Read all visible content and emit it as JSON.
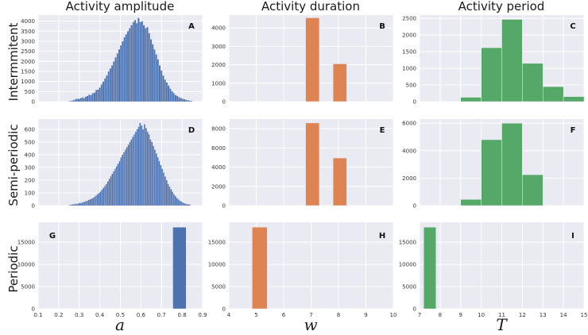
{
  "figure": {
    "column_titles": [
      "Activity amplitude",
      "Activity duration",
      "Activity period"
    ],
    "row_labels": [
      "Intermmitent",
      "Semi-periodic",
      "Periodic"
    ],
    "x_labels": [
      "a",
      "w",
      "T"
    ]
  },
  "chart_data": [
    {
      "id": "A",
      "type": "bar",
      "row": 0,
      "col": 0,
      "color": "#4c72b0",
      "xlim": [
        0.1,
        0.9
      ],
      "ylim": [
        0,
        4300
      ],
      "yticks": [
        0,
        500,
        1000,
        1500,
        2000,
        2500,
        3000,
        3500,
        4000
      ],
      "xticks": [
        0.1,
        0.2,
        0.3,
        0.4,
        0.5,
        0.6,
        0.7,
        0.8,
        0.9
      ],
      "bins": {
        "start": 0.25,
        "width": 0.00857,
        "values": [
          30,
          40,
          70,
          110,
          150,
          130,
          170,
          210,
          180,
          250,
          280,
          350,
          330,
          420,
          450,
          580,
          600,
          700,
          850,
          1000,
          1150,
          1300,
          1500,
          1650,
          1800,
          2000,
          2200,
          2400,
          2600,
          2800,
          3000,
          3200,
          3350,
          3500,
          3650,
          3800,
          3950,
          4050,
          3900,
          4150,
          3950,
          4000,
          3800,
          3650,
          3700,
          3400,
          3100,
          2850,
          2600,
          2350,
          2100,
          1800,
          1550,
          1300,
          1100,
          950,
          800,
          650,
          520,
          420,
          330,
          280,
          220,
          180,
          140,
          120,
          90,
          70,
          50,
          40
        ]
      }
    },
    {
      "id": "B",
      "type": "bar",
      "row": 0,
      "col": 1,
      "color": "#dd8452",
      "xlim": [
        4,
        10
      ],
      "ylim": [
        0,
        4700
      ],
      "yticks": [
        0,
        1000,
        2000,
        3000,
        4000
      ],
      "xticks": [
        4,
        5,
        6,
        7,
        8,
        9,
        10
      ],
      "bars": [
        {
          "x0": 6.8,
          "x1": 7.3,
          "value": 4550
        },
        {
          "x0": 7.8,
          "x1": 8.3,
          "value": 2050
        }
      ]
    },
    {
      "id": "C",
      "type": "bar",
      "row": 0,
      "col": 2,
      "color": "#55a868",
      "xlim": [
        7,
        15
      ],
      "ylim": [
        0,
        2600
      ],
      "yticks": [
        0,
        500,
        1000,
        1500,
        2000,
        2500
      ],
      "xticks": [
        7,
        8,
        9,
        10,
        11,
        12,
        13,
        14,
        15
      ],
      "bars": [
        {
          "x0": 9,
          "x1": 10,
          "value": 130
        },
        {
          "x0": 10,
          "x1": 11,
          "value": 1620
        },
        {
          "x0": 11,
          "x1": 12,
          "value": 2470
        },
        {
          "x0": 12,
          "x1": 13,
          "value": 1150
        },
        {
          "x0": 13,
          "x1": 14,
          "value": 450
        },
        {
          "x0": 14,
          "x1": 15,
          "value": 150
        }
      ]
    },
    {
      "id": "D",
      "type": "bar",
      "row": 1,
      "col": 0,
      "color": "#4c72b0",
      "xlim": [
        0.1,
        0.9
      ],
      "ylim": [
        0,
        680
      ],
      "yticks": [
        0,
        100,
        200,
        300,
        400,
        500,
        600
      ],
      "xticks": [
        0.1,
        0.2,
        0.3,
        0.4,
        0.5,
        0.6,
        0.7,
        0.8,
        0.9
      ],
      "bins": {
        "start": 0.25,
        "width": 0.00714,
        "values": [
          5,
          8,
          10,
          12,
          15,
          14,
          18,
          22,
          20,
          28,
          30,
          35,
          38,
          45,
          50,
          55,
          60,
          70,
          80,
          90,
          100,
          110,
          125,
          140,
          155,
          170,
          190,
          210,
          230,
          250,
          270,
          290,
          310,
          330,
          350,
          380,
          400,
          420,
          440,
          460,
          480,
          500,
          520,
          540,
          560,
          580,
          600,
          620,
          650,
          630,
          600,
          640,
          610,
          580,
          560,
          520,
          500,
          470,
          440,
          410,
          380,
          350,
          320,
          290,
          260,
          230,
          200,
          170,
          150,
          130,
          110,
          90,
          75,
          60,
          50,
          40,
          32,
          25,
          20,
          15,
          12,
          10,
          8
        ]
      }
    },
    {
      "id": "E",
      "type": "bar",
      "row": 1,
      "col": 1,
      "color": "#dd8452",
      "xlim": [
        4,
        10
      ],
      "ylim": [
        0,
        9000
      ],
      "yticks": [
        0,
        2000,
        4000,
        6000,
        8000
      ],
      "xticks": [
        4,
        5,
        6,
        7,
        8,
        9,
        10
      ],
      "bars": [
        {
          "x0": 6.8,
          "x1": 7.3,
          "value": 8600
        },
        {
          "x0": 7.8,
          "x1": 8.3,
          "value": 4950
        }
      ]
    },
    {
      "id": "F",
      "type": "bar",
      "row": 1,
      "col": 2,
      "color": "#55a868",
      "xlim": [
        7,
        15
      ],
      "ylim": [
        0,
        6300
      ],
      "yticks": [
        0,
        2000,
        4000,
        6000
      ],
      "xticks": [
        7,
        8,
        9,
        10,
        11,
        12,
        13,
        14,
        15
      ],
      "bars": [
        {
          "x0": 9,
          "x1": 10,
          "value": 450
        },
        {
          "x0": 10,
          "x1": 11,
          "value": 4800
        },
        {
          "x0": 11,
          "x1": 12,
          "value": 6000
        },
        {
          "x0": 12,
          "x1": 13,
          "value": 2250
        }
      ]
    },
    {
      "id": "G",
      "type": "bar",
      "row": 2,
      "col": 0,
      "color": "#4c72b0",
      "xlim": [
        0.1,
        0.9
      ],
      "ylim": [
        0,
        19500
      ],
      "yticks": [
        0,
        5000,
        10000,
        15000
      ],
      "xticks": [
        0.1,
        0.2,
        0.3,
        0.4,
        0.5,
        0.6,
        0.7,
        0.8,
        0.9
      ],
      "bars": [
        {
          "x0": 0.755,
          "x1": 0.82,
          "value": 18400
        }
      ]
    },
    {
      "id": "H",
      "type": "bar",
      "row": 2,
      "col": 1,
      "color": "#dd8452",
      "xlim": [
        4,
        10
      ],
      "ylim": [
        0,
        19500
      ],
      "yticks": [
        0,
        5000,
        10000,
        15000
      ],
      "xticks": [
        4,
        5,
        6,
        7,
        8,
        9,
        10
      ],
      "bars": [
        {
          "x0": 4.85,
          "x1": 5.4,
          "value": 18400
        }
      ]
    },
    {
      "id": "I",
      "type": "bar",
      "row": 2,
      "col": 2,
      "color": "#55a868",
      "xlim": [
        7,
        15
      ],
      "ylim": [
        0,
        19500
      ],
      "yticks": [
        0,
        5000,
        10000,
        15000
      ],
      "xticks": [
        7,
        8,
        9,
        10,
        11,
        12,
        13,
        14,
        15
      ],
      "bars": [
        {
          "x0": 7.2,
          "x1": 7.8,
          "value": 18400
        }
      ]
    }
  ]
}
